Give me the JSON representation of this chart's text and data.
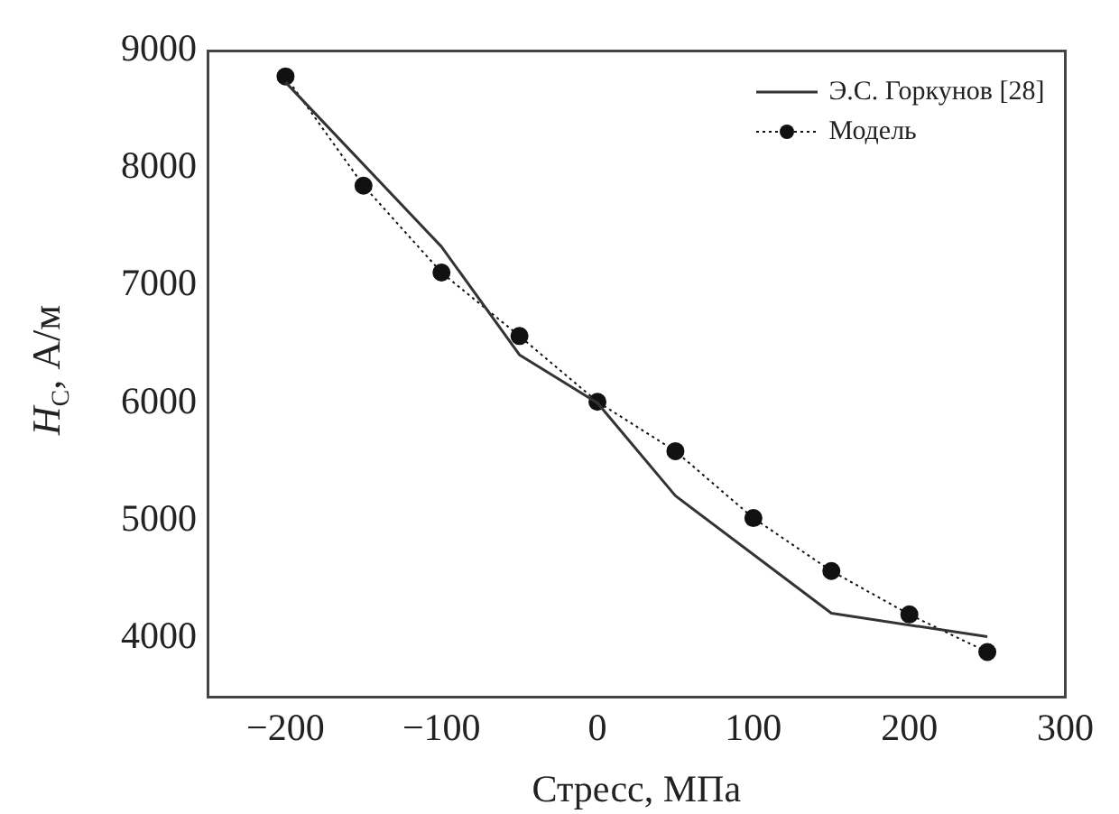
{
  "chart_data": {
    "type": "line",
    "xlabel": "Стресс, МПа",
    "ylabel": "H$_{C}$, А/м",
    "xlim": [
      -250,
      300
    ],
    "xticks": [
      -200,
      -100,
      0,
      100,
      200,
      300
    ],
    "ylim": [
      3500,
      9000
    ],
    "yticks": [
      4000,
      5000,
      6000,
      7000,
      8000,
      9000
    ],
    "grid": false,
    "legend": "top right",
    "series": [
      {
        "name": "Э.С. Горкунов [28]",
        "color": "#333333",
        "marker": "none",
        "line_style": "solid",
        "x": [
          -200,
          -100,
          -50,
          0,
          50,
          150,
          250
        ],
        "values": [
          8730,
          7330,
          6410,
          6000,
          5210,
          4210,
          4010
        ]
      },
      {
        "name": "Модель",
        "color": "#111111",
        "marker": "circle",
        "line_style": "dotted",
        "x": [
          -200,
          -150,
          -100,
          -50,
          0,
          50,
          100,
          150,
          200,
          250
        ],
        "values": [
          8780,
          7850,
          7110,
          6570,
          6010,
          5590,
          5020,
          4570,
          4200,
          3880
        ]
      }
    ]
  }
}
